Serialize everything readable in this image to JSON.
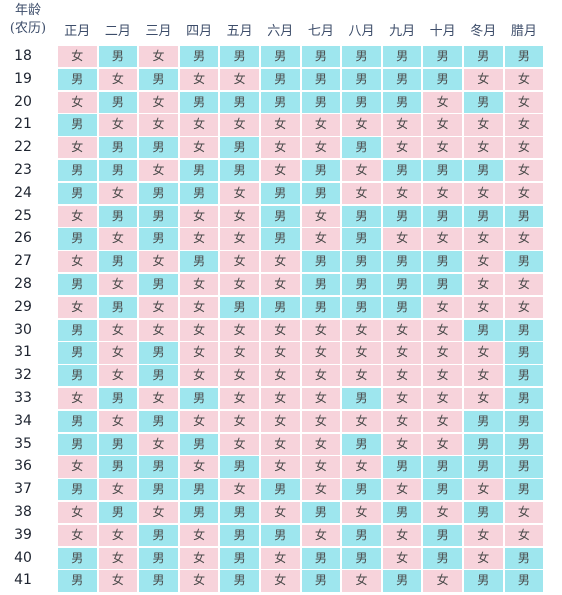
{
  "header": {
    "age_label_line1": "年龄",
    "age_label_line2": "(农历)",
    "months": [
      "正月",
      "二月",
      "三月",
      "四月",
      "五月",
      "六月",
      "七月",
      "八月",
      "九月",
      "十月",
      "冬月",
      "腊月"
    ]
  },
  "legend": {
    "male": "男",
    "female": "女"
  },
  "colors": {
    "male_bg": "#9ee6ee",
    "female_bg": "#f7d3db",
    "header_text": "#3d4d6a",
    "age_text": "#1e2430"
  },
  "rows": [
    {
      "age": "18",
      "cells": [
        "女",
        "男",
        "女",
        "男",
        "男",
        "男",
        "男",
        "男",
        "男",
        "男",
        "男",
        "男"
      ]
    },
    {
      "age": "19",
      "cells": [
        "男",
        "女",
        "男",
        "女",
        "女",
        "男",
        "男",
        "男",
        "男",
        "男",
        "女",
        "女"
      ]
    },
    {
      "age": "20",
      "cells": [
        "女",
        "男",
        "女",
        "男",
        "男",
        "男",
        "男",
        "男",
        "男",
        "女",
        "男",
        "女"
      ]
    },
    {
      "age": "21",
      "cells": [
        "男",
        "女",
        "女",
        "女",
        "女",
        "女",
        "女",
        "女",
        "女",
        "女",
        "女",
        "女"
      ]
    },
    {
      "age": "22",
      "cells": [
        "女",
        "男",
        "男",
        "女",
        "男",
        "女",
        "女",
        "男",
        "女",
        "女",
        "女",
        "女"
      ]
    },
    {
      "age": "23",
      "cells": [
        "男",
        "男",
        "女",
        "男",
        "男",
        "女",
        "男",
        "女",
        "男",
        "男",
        "男",
        "女"
      ]
    },
    {
      "age": "24",
      "cells": [
        "男",
        "女",
        "男",
        "男",
        "女",
        "男",
        "男",
        "女",
        "女",
        "女",
        "女",
        "女"
      ]
    },
    {
      "age": "25",
      "cells": [
        "女",
        "男",
        "男",
        "女",
        "女",
        "男",
        "女",
        "男",
        "男",
        "男",
        "男",
        "男"
      ]
    },
    {
      "age": "26",
      "cells": [
        "男",
        "女",
        "男",
        "女",
        "女",
        "男",
        "女",
        "男",
        "女",
        "女",
        "女",
        "女"
      ]
    },
    {
      "age": "27",
      "cells": [
        "女",
        "男",
        "女",
        "男",
        "女",
        "女",
        "男",
        "男",
        "男",
        "男",
        "女",
        "男"
      ]
    },
    {
      "age": "28",
      "cells": [
        "男",
        "女",
        "男",
        "女",
        "女",
        "女",
        "男",
        "男",
        "男",
        "男",
        "女",
        "女"
      ]
    },
    {
      "age": "29",
      "cells": [
        "女",
        "男",
        "女",
        "女",
        "男",
        "男",
        "男",
        "男",
        "男",
        "女",
        "女",
        "女"
      ]
    },
    {
      "age": "30",
      "cells": [
        "男",
        "女",
        "女",
        "女",
        "女",
        "女",
        "女",
        "女",
        "女",
        "女",
        "男",
        "男"
      ]
    },
    {
      "age": "31",
      "cells": [
        "男",
        "女",
        "男",
        "女",
        "女",
        "女",
        "女",
        "女",
        "女",
        "女",
        "女",
        "男"
      ]
    },
    {
      "age": "32",
      "cells": [
        "男",
        "女",
        "男",
        "女",
        "女",
        "女",
        "女",
        "女",
        "女",
        "女",
        "女",
        "男"
      ]
    },
    {
      "age": "33",
      "cells": [
        "女",
        "男",
        "女",
        "男",
        "女",
        "女",
        "女",
        "男",
        "女",
        "女",
        "女",
        "男"
      ]
    },
    {
      "age": "34",
      "cells": [
        "男",
        "女",
        "男",
        "女",
        "女",
        "女",
        "女",
        "女",
        "女",
        "女",
        "男",
        "男"
      ]
    },
    {
      "age": "35",
      "cells": [
        "男",
        "男",
        "女",
        "男",
        "女",
        "女",
        "女",
        "男",
        "女",
        "女",
        "男",
        "男"
      ]
    },
    {
      "age": "36",
      "cells": [
        "女",
        "男",
        "男",
        "女",
        "男",
        "女",
        "女",
        "女",
        "男",
        "男",
        "男",
        "男"
      ]
    },
    {
      "age": "37",
      "cells": [
        "男",
        "女",
        "男",
        "男",
        "女",
        "男",
        "女",
        "男",
        "女",
        "男",
        "女",
        "男"
      ]
    },
    {
      "age": "38",
      "cells": [
        "女",
        "男",
        "女",
        "男",
        "男",
        "女",
        "男",
        "女",
        "男",
        "女",
        "男",
        "女"
      ]
    },
    {
      "age": "39",
      "cells": [
        "女",
        "女",
        "男",
        "女",
        "男",
        "男",
        "女",
        "男",
        "女",
        "男",
        "女",
        "女"
      ]
    },
    {
      "age": "40",
      "cells": [
        "男",
        "女",
        "男",
        "女",
        "男",
        "女",
        "男",
        "男",
        "女",
        "男",
        "女",
        "男"
      ]
    },
    {
      "age": "41",
      "cells": [
        "男",
        "女",
        "男",
        "女",
        "男",
        "女",
        "男",
        "女",
        "男",
        "女",
        "男",
        "男"
      ]
    }
  ]
}
